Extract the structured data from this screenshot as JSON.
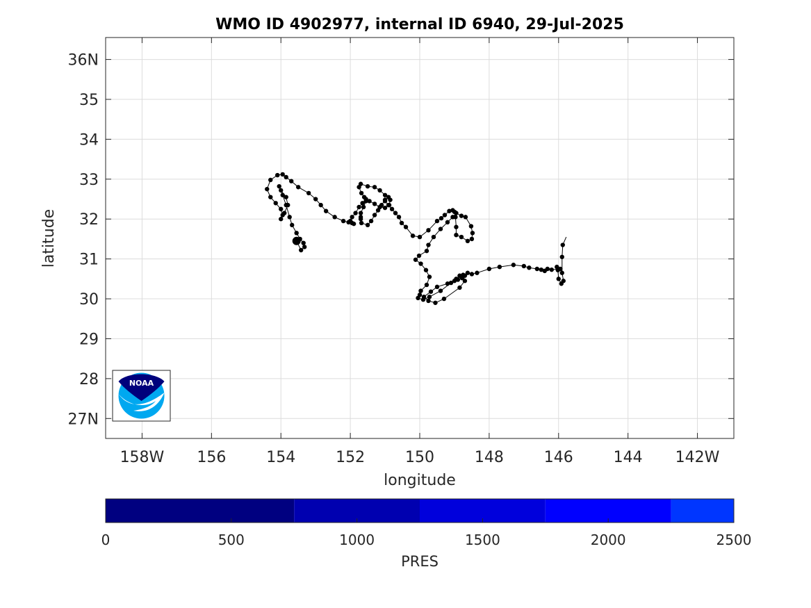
{
  "chart_data": {
    "type": "scatter",
    "title": "WMO ID 4902977, internal ID 6940, 29-Jul-2025",
    "xlabel": "longitude",
    "ylabel": "latitude",
    "xlim": [
      -159.05,
      -140.95
    ],
    "ylim": [
      26.5,
      36.55
    ],
    "grid": true,
    "x_ticks": [
      {
        "value": -158,
        "label": "158W"
      },
      {
        "value": -156,
        "label": "156"
      },
      {
        "value": -154,
        "label": "154"
      },
      {
        "value": -152,
        "label": "152"
      },
      {
        "value": -150,
        "label": "150"
      },
      {
        "value": -148,
        "label": "148"
      },
      {
        "value": -146,
        "label": "146"
      },
      {
        "value": -144,
        "label": "144"
      },
      {
        "value": -142,
        "label": "142W"
      }
    ],
    "y_ticks": [
      {
        "value": 27,
        "label": "27N"
      },
      {
        "value": 28,
        "label": "28"
      },
      {
        "value": 29,
        "label": "29"
      },
      {
        "value": 30,
        "label": "30"
      },
      {
        "value": 31,
        "label": "31"
      },
      {
        "value": 32,
        "label": "32"
      },
      {
        "value": 33,
        "label": "33"
      },
      {
        "value": 34,
        "label": "34"
      },
      {
        "value": 35,
        "label": "35"
      },
      {
        "value": 36,
        "label": "36N"
      }
    ],
    "track": {
      "lon": [
        -145.78,
        -145.88,
        -145.9,
        -145.9,
        -145.86,
        -145.92,
        -146.0,
        -146.02,
        -146.05,
        -145.95,
        -146.2,
        -146.32,
        -146.4,
        -146.5,
        -146.62,
        -146.85,
        -147.0,
        -147.3,
        -147.7,
        -148.0,
        -148.35,
        -148.5,
        -148.62,
        -148.7,
        -148.78,
        -148.9,
        -149.0,
        -149.2,
        -149.5,
        -149.68,
        -149.88,
        -149.75,
        -149.55,
        -149.3,
        -148.85,
        -148.7,
        -148.75,
        -148.85,
        -148.95,
        -149.1,
        -149.4,
        -149.72,
        -149.9,
        -150.05,
        -150.0,
        -149.97,
        -149.8,
        -149.72,
        -149.82,
        -149.97,
        -150.12,
        -150.02,
        -149.8,
        -149.75,
        -149.6,
        -149.4,
        -149.2,
        -149.05,
        -148.95,
        -148.8,
        -148.68,
        -148.52,
        -148.48,
        -148.5,
        -148.62,
        -148.8,
        -148.95,
        -148.95,
        -148.97,
        -149.0,
        -149.05,
        -149.15,
        -149.28,
        -149.38,
        -149.5,
        -149.75,
        -150.0,
        -150.2,
        -150.4,
        -150.52,
        -150.6,
        -150.7,
        -150.8,
        -150.9,
        -151.0,
        -151.0,
        -151.15,
        -151.3,
        -151.5,
        -151.7,
        -151.75,
        -151.68,
        -151.6,
        -151.55,
        -151.62,
        -151.7,
        -151.7,
        -151.7,
        -151.68,
        -151.5,
        -151.4,
        -151.3,
        -151.2,
        -151.1,
        -151.0,
        -150.9,
        -150.85,
        -150.88,
        -151.0,
        -151.15,
        -151.3,
        -151.45,
        -151.55,
        -151.65,
        -151.75,
        -151.85,
        -151.95,
        -152.0,
        -151.9,
        -151.95,
        -152.05,
        -152.2,
        -152.45,
        -152.7,
        -152.85,
        -153.0,
        -153.2,
        -153.5,
        -153.7,
        -153.85,
        -153.95,
        -154.1,
        -154.3,
        -154.4,
        -154.3,
        -154.15,
        -154.0,
        -153.95,
        -154.0,
        -153.9,
        -153.8,
        -153.85,
        -154.0,
        -154.05,
        -153.95,
        -153.85,
        -153.75,
        -153.68,
        -153.55,
        -153.45,
        -153.35,
        -153.32,
        -153.42,
        -153.55
      ],
      "lat": [
        31.55,
        31.35,
        31.05,
        30.65,
        30.45,
        30.38,
        30.5,
        30.72,
        30.8,
        30.75,
        30.73,
        30.75,
        30.7,
        30.73,
        30.75,
        30.78,
        30.82,
        30.85,
        30.8,
        30.75,
        30.65,
        30.62,
        30.65,
        30.58,
        30.52,
        30.48,
        30.45,
        30.38,
        30.3,
        30.18,
        30.05,
        29.95,
        29.9,
        30.0,
        30.28,
        30.45,
        30.6,
        30.58,
        30.5,
        30.4,
        30.2,
        30.05,
        29.98,
        30.02,
        30.1,
        30.2,
        30.35,
        30.55,
        30.72,
        30.88,
        30.98,
        31.08,
        31.2,
        31.35,
        31.55,
        31.75,
        31.92,
        32.05,
        32.15,
        32.08,
        32.05,
        31.82,
        31.65,
        31.5,
        31.45,
        31.55,
        31.6,
        31.8,
        32.05,
        32.18,
        32.22,
        32.2,
        32.1,
        32.02,
        31.95,
        31.72,
        31.55,
        31.58,
        31.8,
        31.9,
        32.05,
        32.15,
        32.25,
        32.35,
        32.45,
        32.6,
        32.72,
        32.8,
        32.82,
        32.88,
        32.8,
        32.65,
        32.55,
        32.45,
        32.3,
        32.15,
        32.05,
        32.0,
        31.9,
        31.85,
        31.95,
        32.1,
        32.22,
        32.35,
        32.48,
        32.55,
        32.48,
        32.35,
        32.28,
        32.3,
        32.38,
        32.45,
        32.5,
        32.4,
        32.3,
        32.15,
        32.05,
        31.95,
        31.88,
        31.9,
        31.92,
        31.95,
        32.05,
        32.2,
        32.35,
        32.5,
        32.65,
        32.8,
        32.95,
        33.05,
        33.12,
        33.1,
        32.98,
        32.75,
        32.55,
        32.4,
        32.25,
        32.1,
        32.0,
        32.15,
        32.35,
        32.55,
        32.72,
        32.82,
        32.6,
        32.35,
        32.05,
        31.85,
        31.65,
        31.5,
        31.4,
        31.3,
        31.22,
        31.45
      ]
    },
    "series": [
      {
        "name": "PRES",
        "marker": "dot",
        "line_color": "#000000"
      }
    ],
    "colorbar": {
      "label": "PRES",
      "range": [
        0,
        2500
      ],
      "ticks": [
        0,
        500,
        1000,
        1500,
        2000,
        2500
      ],
      "tick_labels": [
        "0",
        "500",
        "1000",
        "1500",
        "2000",
        "2500"
      ],
      "bins": [
        {
          "from": 0,
          "to": 750,
          "color": "#000080"
        },
        {
          "from": 750,
          "to": 1250,
          "color": "#0000b0"
        },
        {
          "from": 1250,
          "to": 1750,
          "color": "#0000dc"
        },
        {
          "from": 1750,
          "to": 2250,
          "color": "#0000ff"
        },
        {
          "from": 2250,
          "to": 2500,
          "color": "#0036ff"
        }
      ]
    },
    "logo": {
      "text": "NOAA"
    }
  }
}
